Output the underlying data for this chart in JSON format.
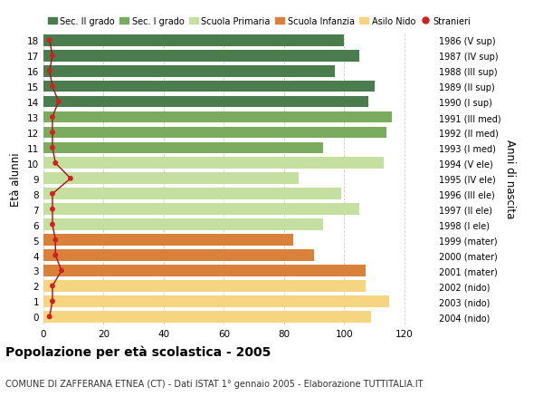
{
  "ages": [
    18,
    17,
    16,
    15,
    14,
    13,
    12,
    11,
    10,
    9,
    8,
    7,
    6,
    5,
    4,
    3,
    2,
    1,
    0
  ],
  "years": [
    "1986 (V sup)",
    "1987 (IV sup)",
    "1988 (III sup)",
    "1989 (II sup)",
    "1990 (I sup)",
    "1991 (III med)",
    "1992 (II med)",
    "1993 (I med)",
    "1994 (V ele)",
    "1995 (IV ele)",
    "1996 (III ele)",
    "1997 (II ele)",
    "1998 (I ele)",
    "1999 (mater)",
    "2000 (mater)",
    "2001 (mater)",
    "2002 (nido)",
    "2003 (nido)",
    "2004 (nido)"
  ],
  "bar_values": [
    100,
    105,
    97,
    110,
    108,
    116,
    114,
    93,
    113,
    85,
    99,
    105,
    93,
    83,
    90,
    107,
    107,
    115,
    109
  ],
  "bar_colors": [
    "#4a7c4e",
    "#4a7c4e",
    "#4a7c4e",
    "#4a7c4e",
    "#4a7c4e",
    "#7aab5e",
    "#7aab5e",
    "#7aab5e",
    "#c5dfa0",
    "#c5dfa0",
    "#c5dfa0",
    "#c5dfa0",
    "#c5dfa0",
    "#d9813a",
    "#d9813a",
    "#d9813a",
    "#f5d580",
    "#f5d580",
    "#f5d580"
  ],
  "stranieri_values": [
    2,
    3,
    2,
    3,
    5,
    3,
    3,
    3,
    4,
    9,
    3,
    3,
    3,
    4,
    4,
    6,
    3,
    3,
    2
  ],
  "title": "Popolazione per età scolastica - 2005",
  "subtitle": "COMUNE DI ZAFFERANA ETNEA (CT) - Dati ISTAT 1° gennaio 2005 - Elaborazione TUTTITALIA.IT",
  "ylabel": "Età alunni",
  "right_ylabel": "Anni di nascita",
  "xlim": [
    0,
    130
  ],
  "xticks": [
    0,
    20,
    40,
    60,
    80,
    100,
    120
  ],
  "legend_labels": [
    "Sec. II grado",
    "Sec. I grado",
    "Scuola Primaria",
    "Scuola Infanzia",
    "Asilo Nido",
    "Stranieri"
  ],
  "legend_colors": [
    "#4a7c4e",
    "#7aab5e",
    "#c5dfa0",
    "#d9813a",
    "#f5d580",
    "#cc2222"
  ],
  "bar_height": 0.75,
  "background_color": "#ffffff",
  "grid_color": "#cccccc",
  "stranieri_line_color": "#aa1111",
  "stranieri_dot_color": "#cc2222"
}
